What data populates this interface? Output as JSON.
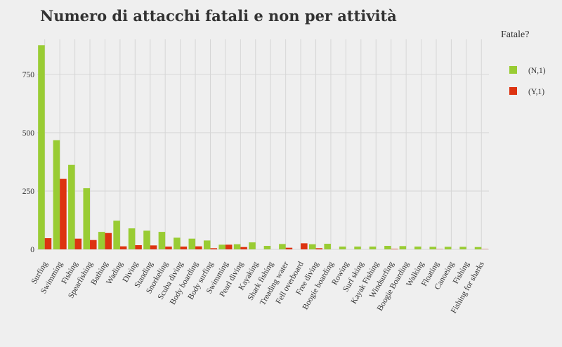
{
  "chart_data": {
    "type": "bar",
    "title": "Numero di attacchi fatali e non per attività",
    "xlabel": "",
    "ylabel": "",
    "ylim": [
      0,
      900
    ],
    "yticks": [
      0,
      250,
      500,
      750
    ],
    "grid": true,
    "legend_position": "right",
    "legend_title": "Fatale?",
    "categories": [
      "Surfing",
      "Swimming",
      "Fishing",
      "Spearfishing",
      "Bathing",
      "Wading",
      "Diving",
      "Standing",
      "Snorkeling",
      "Scuba diving",
      "Body boarding",
      "Body surfing",
      "Swimming ",
      "Pearl diving",
      "Kayaking",
      "Shark fishing",
      "Treading water",
      "Fell overboard",
      "Free diving",
      "Boogie boarding",
      "Rowing",
      "Surf sking",
      "Kayak Fishing",
      "Windsurfing",
      "Boogie Boarding",
      "Walking",
      "Floating",
      "Canoeing",
      "Fishing ",
      "Fishing for sharks"
    ],
    "series": [
      {
        "name": "(N,1)",
        "color": "#99cc33",
        "values": [
          875,
          468,
          362,
          262,
          75,
          123,
          90,
          80,
          75,
          50,
          46,
          38,
          20,
          22,
          30,
          15,
          23,
          0,
          22,
          24,
          12,
          12,
          12,
          15,
          14,
          12,
          11,
          11,
          11,
          10
        ]
      },
      {
        "name": "(Y,1)",
        "color": "#dd3311",
        "values": [
          48,
          302,
          46,
          40,
          70,
          13,
          18,
          17,
          12,
          12,
          13,
          5,
          20,
          10,
          0,
          0,
          7,
          26,
          5,
          0,
          0,
          0,
          0,
          2,
          0,
          0,
          1,
          0,
          0,
          1
        ]
      }
    ]
  }
}
